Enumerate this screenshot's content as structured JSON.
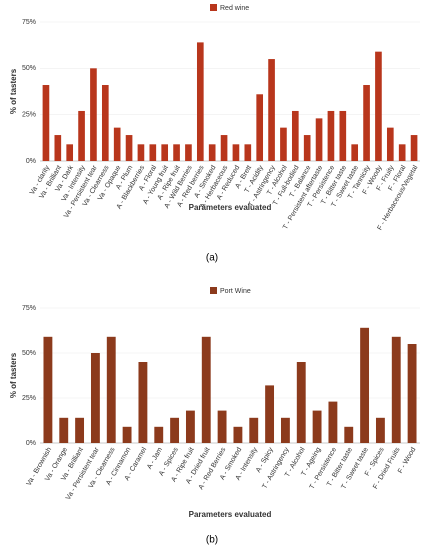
{
  "chart_data": [
    {
      "type": "bar",
      "caption": "(a)",
      "xlabel": "Parameters evaluated",
      "ylabel": "% of tasters",
      "categories": [
        "Va - clarity",
        "Va - Brilliant",
        "Va - Dark",
        "Va - Intensity",
        "Va - Persistent tear",
        "Va - Clearness",
        "Va - Opaque",
        "A - Plum",
        "A - Blackberries",
        "A - Floral",
        "A - Young fruit",
        "A - Ripe fruit",
        "A - Wild Berries",
        "A - Red berries",
        "A - Smoked",
        "A - Herbaceous",
        "A - Reduced",
        "A - Brett",
        "T - Acidity",
        "T - Astringency",
        "T - Alcohol",
        "T - Full-bodied",
        "T - Balance",
        "T - Persistent aftertaste",
        "T - Persistence",
        "T - Bitter taste",
        "T - Sweet taste",
        "T - Tannicity",
        "F - Woody",
        "F - Fruity",
        "F - Floral",
        "F - Herbaceous/Vegetal"
      ],
      "series": [
        {
          "name": "Red wine",
          "color": "#b8361c",
          "values": [
            41,
            14,
            9,
            27,
            50,
            41,
            18,
            14,
            9,
            9,
            9,
            9,
            9,
            64,
            9,
            14,
            9,
            9,
            36,
            55,
            18,
            27,
            14,
            23,
            27,
            27,
            9,
            41,
            59,
            18,
            9,
            14
          ]
        }
      ],
      "ylim": [
        0,
        75
      ],
      "yticks": [
        {
          "value": 0,
          "label": "0%"
        },
        {
          "value": 25,
          "label": "25%"
        },
        {
          "value": 50,
          "label": "50%"
        },
        {
          "value": 75,
          "label": "75%"
        }
      ],
      "legend": "top"
    },
    {
      "type": "bar",
      "caption": "(b)",
      "xlabel": "Parameters evaluated",
      "ylabel": "% of tasters",
      "categories": [
        "Va - Brownish",
        "Va - Orange",
        "Va - Brilliant",
        "Va - Persistent tear",
        "Va - Clearness",
        "A - Cinnamon",
        "A - Caramel",
        "A - Jam",
        "A - Spices",
        "A - Ripe fruit",
        "A - Dried fruit",
        "A - Red Berries",
        "A - Smoked",
        "A - Intensity",
        "A - Spicy",
        "T - Astringency",
        "T - Alcohol",
        "T - Ageing",
        "T - Persistence",
        "T - Bitter taste",
        "T - Sweet taste",
        "F - Spices",
        "F - Dried Fruits",
        "F - Wood"
      ],
      "series": [
        {
          "name": "Port Wine",
          "color": "#8c3a1c",
          "values": [
            59,
            14,
            14,
            50,
            59,
            9,
            45,
            9,
            14,
            18,
            59,
            18,
            9,
            14,
            32,
            14,
            45,
            18,
            23,
            9,
            64,
            14,
            59,
            55
          ]
        }
      ],
      "ylim": [
        0,
        75
      ],
      "yticks": [
        {
          "value": 0,
          "label": "0%"
        },
        {
          "value": 25,
          "label": "25%"
        },
        {
          "value": 50,
          "label": "50%"
        },
        {
          "value": 75,
          "label": "75%"
        }
      ],
      "legend": "top"
    }
  ]
}
